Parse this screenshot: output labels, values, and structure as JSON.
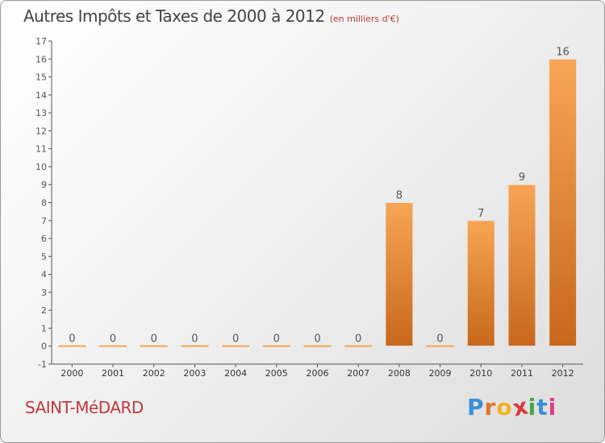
{
  "title": "Autres Impôts et Taxes de 2000 à 2012",
  "subtitle": "(en milliers d'€)",
  "commune": "SAINT-MéDARD",
  "logo": {
    "letters": [
      "P",
      "r",
      "o",
      "x",
      "i",
      "t",
      "i"
    ],
    "colors": [
      "#3a8fd8",
      "#e0762b",
      "#f0b323",
      "#d83a3a",
      "#45a845",
      "#3a8fd8",
      "#e03a8a"
    ]
  },
  "chart_data": {
    "type": "bar",
    "title": "Autres Impôts et Taxes de 2000 à 2012",
    "subtitle": "(en milliers d'€)",
    "xlabel": "",
    "ylabel": "",
    "categories": [
      "2000",
      "2001",
      "2002",
      "2003",
      "2004",
      "2005",
      "2006",
      "2007",
      "2008",
      "2009",
      "2010",
      "2011",
      "2012"
    ],
    "values": [
      0,
      0,
      0,
      0,
      0,
      0,
      0,
      0,
      8,
      0,
      7,
      9,
      16
    ],
    "data_labels": [
      "0",
      "0",
      "0",
      "0",
      "0",
      "0",
      "0",
      "0",
      "8",
      "0",
      "7",
      "9",
      "16"
    ],
    "ylim": [
      -1,
      17
    ],
    "yticks": [
      -1,
      0,
      1,
      2,
      3,
      4,
      5,
      6,
      7,
      8,
      9,
      10,
      11,
      12,
      13,
      14,
      15,
      16,
      17
    ],
    "grid": false,
    "legend": "none",
    "colors": {
      "bar_top": "#f7a555",
      "bar_bottom": "#c8681c",
      "axis": "#555555",
      "label": "#555555"
    }
  }
}
